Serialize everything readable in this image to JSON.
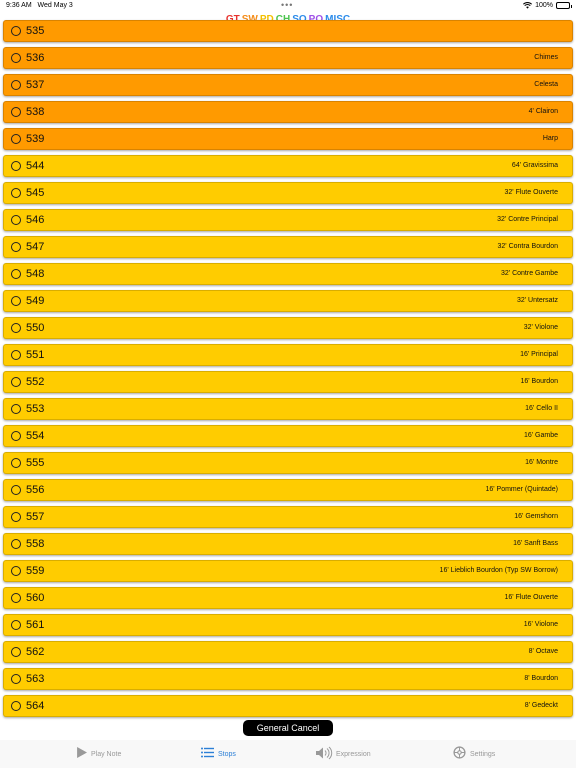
{
  "status": {
    "time": "9:36 AM",
    "date": "Wed May 3",
    "battery": "100%"
  },
  "divisions": [
    {
      "label": "GT",
      "color": "#e8332e"
    },
    {
      "label": "SW",
      "color": "#f58d1a"
    },
    {
      "label": "PD",
      "color": "#f3c000"
    },
    {
      "label": "CH",
      "color": "#4cc44f"
    },
    {
      "label": "SO",
      "color": "#2d8cea"
    },
    {
      "label": "PO",
      "color": "#a052e8"
    },
    {
      "label": "MISC",
      "color": "#2d8cea"
    }
  ],
  "colors": {
    "orange_row": "#ff9a00",
    "yellow_row": "#ffcc00",
    "tab_active": "#2b7fd6"
  },
  "stops": [
    {
      "number": "535",
      "name": "",
      "group": "orange"
    },
    {
      "number": "536",
      "name": "Chimes",
      "group": "orange"
    },
    {
      "number": "537",
      "name": "Celesta",
      "group": "orange"
    },
    {
      "number": "538",
      "name": "4' Clairon",
      "group": "orange"
    },
    {
      "number": "539",
      "name": "Harp",
      "group": "orange"
    },
    {
      "number": "544",
      "name": "64' Gravissima",
      "group": "yellow"
    },
    {
      "number": "545",
      "name": "32' Flute Ouverte",
      "group": "yellow"
    },
    {
      "number": "546",
      "name": "32' Contre Principal",
      "group": "yellow"
    },
    {
      "number": "547",
      "name": "32' Contra Bourdon",
      "group": "yellow"
    },
    {
      "number": "548",
      "name": "32' Contre Gambe",
      "group": "yellow"
    },
    {
      "number": "549",
      "name": "32' Untersatz",
      "group": "yellow"
    },
    {
      "number": "550",
      "name": "32' Violone",
      "group": "yellow"
    },
    {
      "number": "551",
      "name": "16' Principal",
      "group": "yellow"
    },
    {
      "number": "552",
      "name": "16' Bourdon",
      "group": "yellow"
    },
    {
      "number": "553",
      "name": "16' Cello II",
      "group": "yellow"
    },
    {
      "number": "554",
      "name": "16' Gambe",
      "group": "yellow"
    },
    {
      "number": "555",
      "name": "16' Montre",
      "group": "yellow"
    },
    {
      "number": "556",
      "name": "16' Pommer (Quintade)",
      "group": "yellow"
    },
    {
      "number": "557",
      "name": "16' Gemshorn",
      "group": "yellow"
    },
    {
      "number": "558",
      "name": "16' Sanft Bass",
      "group": "yellow"
    },
    {
      "number": "559",
      "name": "16' Lieblich Bourdon (Typ SW Borrow)",
      "group": "yellow"
    },
    {
      "number": "560",
      "name": "16' Flute Ouverte",
      "group": "yellow"
    },
    {
      "number": "561",
      "name": "16' Violone",
      "group": "yellow"
    },
    {
      "number": "562",
      "name": "8' Octave",
      "group": "yellow"
    },
    {
      "number": "563",
      "name": "8' Bourdon",
      "group": "yellow"
    },
    {
      "number": "564",
      "name": "8' Gedeckt",
      "group": "yellow"
    }
  ],
  "cancel_label": "General Cancel",
  "tabs": [
    {
      "label": "Play Note",
      "icon": "play-icon",
      "active": false
    },
    {
      "label": "Stops",
      "icon": "list-icon",
      "active": true
    },
    {
      "label": "Expression",
      "icon": "speaker-icon",
      "active": false
    },
    {
      "label": "Settings",
      "icon": "gear-icon",
      "active": false
    }
  ]
}
